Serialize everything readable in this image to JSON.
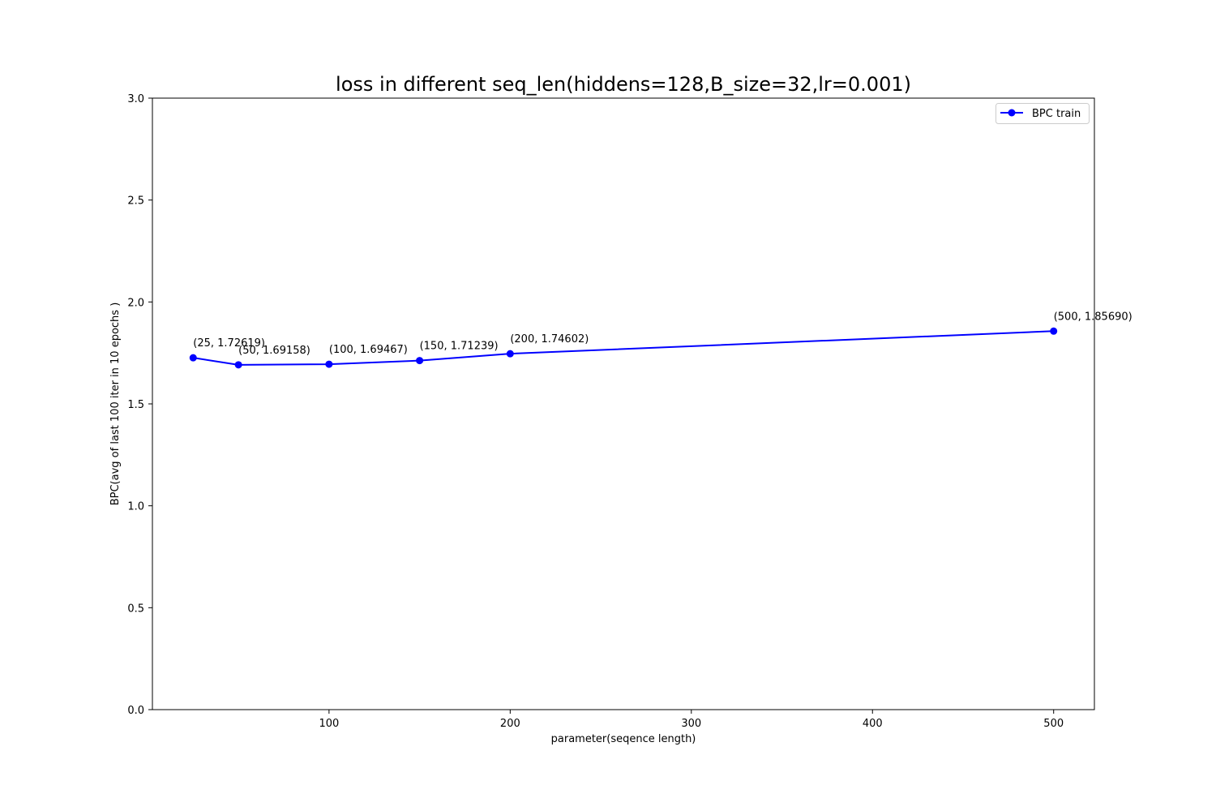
{
  "chart_data": {
    "type": "line",
    "title": "loss in different seq_len(hiddens=128,B_size=32,lr=0.001)",
    "xlabel": "parameter(seqence length)",
    "ylabel": "BPC(avg of last 100 iter in 10 epochs )",
    "xlim": [
      2.5,
      522.5
    ],
    "ylim": [
      0,
      3.0
    ],
    "x_ticks": [
      100,
      200,
      300,
      400,
      500
    ],
    "x_tick_labels": [
      "100",
      "200",
      "300",
      "400",
      "500"
    ],
    "y_ticks": [
      0.0,
      0.5,
      1.0,
      1.5,
      2.0,
      2.5,
      3.0
    ],
    "y_tick_labels": [
      "0.0",
      "0.5",
      "1.0",
      "1.5",
      "2.0",
      "2.5",
      "3.0"
    ],
    "grid": false,
    "legend_position": "top-right",
    "series": [
      {
        "name": "BPC train",
        "color": "#0000ff",
        "marker": "circle",
        "x": [
          25,
          50,
          100,
          150,
          200,
          500
        ],
        "y": [
          1.72619,
          1.69158,
          1.69467,
          1.71239,
          1.74602,
          1.8569
        ],
        "point_labels": [
          "(25, 1.72619)",
          "(50, 1.69158)",
          "(100, 1.69467)",
          "(150, 1.71239)",
          "(200, 1.74602)",
          "(500, 1.85690)"
        ]
      }
    ]
  }
}
